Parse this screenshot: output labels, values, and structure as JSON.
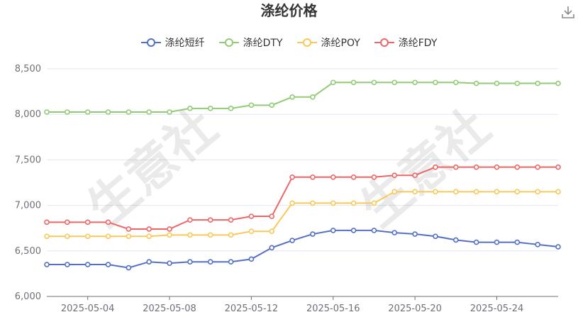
{
  "title": "涤纶价格",
  "download_icon": "download-icon",
  "watermark_text": "生意社",
  "colors": {
    "axis": "#6e7079",
    "grid": "#e0e6f1"
  },
  "chart_data": {
    "type": "line",
    "title": "涤纶价格",
    "xlabel": "",
    "ylabel": "",
    "ylim": [
      6000,
      8500
    ],
    "yticks": [
      "6,000",
      "6,500",
      "7,000",
      "7,500",
      "8,000",
      "8,500"
    ],
    "grid": true,
    "legend_position": "top-center",
    "x": [
      "2025-05-02",
      "2025-05-03",
      "2025-05-04",
      "2025-05-05",
      "2025-05-06",
      "2025-05-07",
      "2025-05-08",
      "2025-05-09",
      "2025-05-10",
      "2025-05-11",
      "2025-05-12",
      "2025-05-13",
      "2025-05-14",
      "2025-05-15",
      "2025-05-16",
      "2025-05-17",
      "2025-05-18",
      "2025-05-19",
      "2025-05-20",
      "2025-05-21",
      "2025-05-22",
      "2025-05-23",
      "2025-05-24",
      "2025-05-25",
      "2025-05-26",
      "2025-05-27"
    ],
    "xtick_labels": [
      "2025-05-04",
      "2025-05-08",
      "2025-05-12",
      "2025-05-16",
      "2025-05-20",
      "2025-05-24"
    ],
    "series": [
      {
        "name": "涤纶短纤",
        "color": "#5470c6",
        "values": [
          6350,
          6350,
          6350,
          6350,
          6315,
          6380,
          6365,
          6380,
          6380,
          6380,
          6410,
          6535,
          6615,
          6685,
          6725,
          6725,
          6725,
          6700,
          6685,
          6660,
          6620,
          6595,
          6595,
          6595,
          6570,
          6545
        ]
      },
      {
        "name": "涤纶DTY",
        "color": "#91cc75",
        "values": [
          8025,
          8025,
          8025,
          8025,
          8025,
          8025,
          8025,
          8065,
          8065,
          8065,
          8100,
          8100,
          8190,
          8190,
          8350,
          8350,
          8350,
          8350,
          8350,
          8350,
          8350,
          8340,
          8340,
          8340,
          8340,
          8340
        ]
      },
      {
        "name": "涤纶POY",
        "color": "#fac858",
        "values": [
          6660,
          6660,
          6660,
          6660,
          6660,
          6660,
          6675,
          6675,
          6675,
          6675,
          6715,
          6715,
          7025,
          7025,
          7025,
          7025,
          7025,
          7150,
          7150,
          7150,
          7150,
          7150,
          7150,
          7150,
          7150,
          7150
        ]
      },
      {
        "name": "涤纶FDY",
        "color": "#ee6666",
        "values": [
          6815,
          6815,
          6815,
          6815,
          6740,
          6740,
          6740,
          6840,
          6840,
          6840,
          6880,
          6880,
          7310,
          7310,
          7310,
          7310,
          7310,
          7330,
          7330,
          7420,
          7420,
          7420,
          7420,
          7420,
          7420,
          7420
        ]
      }
    ]
  }
}
